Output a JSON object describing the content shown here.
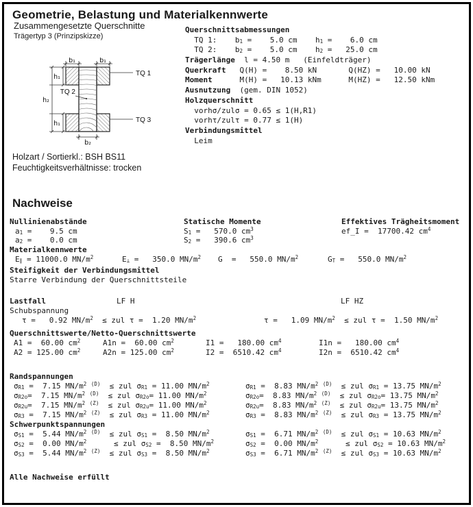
{
  "header": {
    "title": "Geometrie, Belastung und Materialkennwerte",
    "subtitle": "Zusammengesetzte Querschnitte",
    "sketch_caption": "Trägertyp 3 (Prinzipskizze)"
  },
  "sketch": {
    "labels": {
      "b1_left": "b₁",
      "b1_right": "b₁",
      "h1_top": "h₁",
      "h1_bottom": "h₁",
      "h2": "h₂",
      "b2": "b₂",
      "tq1": "TQ 1",
      "tq2": "TQ 2",
      "tq3": "TQ 3"
    }
  },
  "geometry": {
    "lines": [
      {
        "label": "Querschnittsabmessungen",
        "text": ""
      },
      {
        "label": "",
        "text": "  TQ 1:    b~1~ =    5.0 cm    h~1~ =    6.0 cm"
      },
      {
        "label": "",
        "text": "  TQ 2:    b~2~ =    5.0 cm    h~2~ =   25.0 cm"
      },
      {
        "label": "Trägerlänge",
        "text": "  l = 4.50 m   (Einfeldträger)"
      },
      {
        "label": "Querkraft",
        "text": "   Q(H) =    8.50 kN       Q(HZ) =   10.00 kN"
      },
      {
        "label": "Moment",
        "text": "      M(H) =   10.13 kNm      M(HZ) =   12.50 kNm"
      },
      {
        "label": "Ausnutzung",
        "text": "  (gem. DIN 1052)"
      },
      {
        "label": "Holzquerschnitt",
        "text": ""
      },
      {
        "label": "",
        "text": "  vorhσ/zulσ = 0.65 ≤ 1(H,R1)"
      },
      {
        "label": "",
        "text": "  vorhτ/zulτ = 0.77 ≤ 1(H)"
      },
      {
        "label": "Verbindungsmittel",
        "text": ""
      },
      {
        "label": "",
        "text": "  Leim"
      }
    ]
  },
  "info": {
    "holzart": "Holzart / Sortierkl.:  BSH BS11",
    "feuchte": "Feuchtigkeitsverhältnisse:  trocken"
  },
  "nachweise": {
    "heading": "Nachweise",
    "kopf": {
      "c1": "Nullinienabstände",
      "c2": "Statische Momente",
      "c3": "Effektives Trägheitsmoment"
    },
    "r1": {
      "c1": "a~1~ =    9.5 cm",
      "c2": "S~1~ =   570.0 cm^3^",
      "c3": "ef_I =  17700.42 cm^4^"
    },
    "r2": {
      "c1": "a~2~ =    0.0 cm",
      "c2": "S~2~ =   390.6 cm^3^"
    },
    "mk": "Materialkennwerte",
    "mat": {
      "c1": "E~∥~ = 11000.0 MN/m^2^",
      "c2": "E~⊥~ =   350.0 MN/m^2^",
      "c3": "G  =   550.0 MN/m^2^",
      "c4": "G~T~ =   550.0 MN/m^2^"
    },
    "stf": "Steifigkeit der Verbindungsmittel",
    "stv": "Starre Verbindung der Querschnittsteile",
    "lastfall": {
      "label": "Lastfall",
      "h": "LF H",
      "hz": "LF HZ"
    },
    "schub": {
      "heading": "Schubspannung",
      "h": "τ =   0.92 MN/m^2^  ≤ zul τ =  1.20 MN/m^2^",
      "hz": "τ =   1.09 MN/m^2^  ≤ zul τ =  1.50 MN/m^2^"
    },
    "qw": {
      "heading": "Querschnittswerte/Netto-Querschnittswerte",
      "r1": {
        "c1": "A1 =  60.00 cm^2^",
        "c2": "A1n =  60.00 cm^2^",
        "c3": "I1 =   180.00 cm^4^",
        "c4": "I1n =   180.00 cm^4^"
      },
      "r2": {
        "c1": "A2 = 125.00 cm^2^",
        "c2": "A2n = 125.00 cm^2^",
        "c3": "I2 =  6510.42 cm^4^",
        "c4": "I2n =  6510.42 cm^4^"
      }
    },
    "rand": {
      "heading": "Randspannungen",
      "rows": [
        {
          "h": "σ~R1~ =  7.15 MN/m^2^ ^(D)^  ≤ zul σ~R1~ = 11.00 MN/m^2^",
          "hz": "σ~R1~ =  8.83 MN/m^2^ ^(D)^  ≤ zul σ~R1~ = 13.75 MN/m^2^"
        },
        {
          "h": "σ~R2o~=  7.15 MN/m^2^ ^(D)^  ≤ zul σ~R2o~= 11.00 MN/m^2^",
          "hz": "σ~R2o~=  8.83 MN/m^2^ ^(D)^  ≤ zul σ~R2o~= 13.75 MN/m^2^"
        },
        {
          "h": "σ~R2u~=  7.15 MN/m^2^ ^(Z)^  ≤ zul σ~R2u~= 11.00 MN/m^2^",
          "hz": "σ~R2u~=  8.83 MN/m^2^ ^(Z)^  ≤ zul σ~R2u~= 13.75 MN/m^2^"
        },
        {
          "h": "σ~R3~ =  7.15 MN/m^2^ ^(Z)^  ≤ zul σ~R3~ = 11.00 MN/m^2^",
          "hz": "σ~R3~ =  8.83 MN/m^2^ ^(Z)^  ≤ zul σ~R3~ = 13.75 MN/m^2^"
        }
      ]
    },
    "schwer": {
      "heading": "Schwerpunktspannungen",
      "rows": [
        {
          "h": "σ~S1~ =  5.44 MN/m^2^ ^(D)^  ≤ zul σ~S1~ =  8.50 MN/m^2^",
          "hz": "σ~S1~ =  6.71 MN/m^2^ ^(D)^  ≤ zul σ~S1~ = 10.63 MN/m^2^"
        },
        {
          "h": "σ~S2~ =  0.00 MN/m^2^      ≤ zul σ~S2~ =  8.50 MN/m^2^",
          "hz": "σ~S2~ =  0.00 MN/m^2^      ≤ zul σ~S2~ = 10.63 MN/m^2^"
        },
        {
          "h": "σ~S3~ =  5.44 MN/m^2^ ^(Z)^  ≤ zul σ~S3~ =  8.50 MN/m^2^",
          "hz": "σ~S3~ =  6.71 MN/m^2^ ^(Z)^  ≤ zul σ~S3~ = 10.63 MN/m^2^"
        }
      ]
    },
    "fazit": "Alle Nachweise erfüllt"
  }
}
